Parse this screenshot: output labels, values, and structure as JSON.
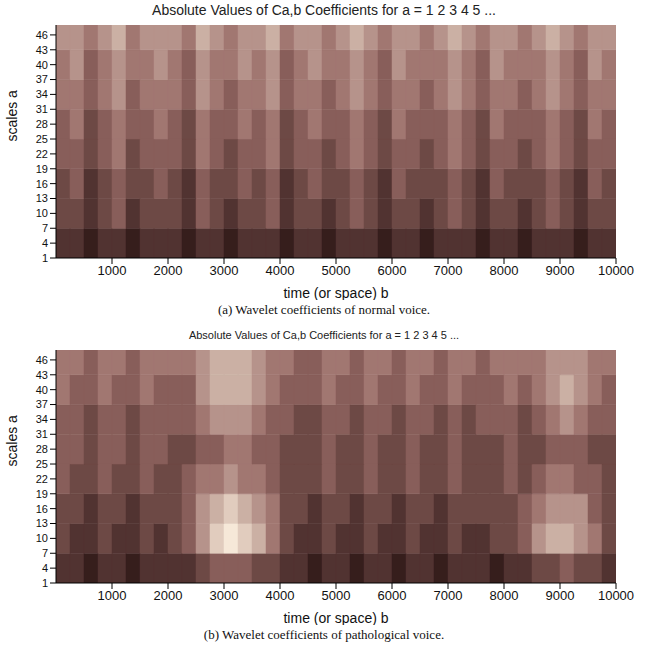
{
  "chart_data": [
    {
      "type": "heatmap",
      "title": "Absolute Values of Ca,b Coefficients for a =  1 2 3 4 5 ...",
      "xlabel": "time (or space) b",
      "ylabel": "scales a",
      "caption": "(a) Wavelet coefficients of normal voice.",
      "xlim": [
        0,
        10000
      ],
      "xticks": [
        1000,
        2000,
        3000,
        4000,
        5000,
        6000,
        7000,
        8000,
        9000,
        10000
      ],
      "ylim": [
        1,
        48
      ],
      "yticks": [
        1,
        4,
        7,
        10,
        13,
        16,
        19,
        22,
        25,
        28,
        31,
        34,
        37,
        40,
        43,
        46
      ],
      "x_edges": [
        0,
        250,
        500,
        750,
        1000,
        1250,
        1500,
        1750,
        2000,
        2250,
        2500,
        2750,
        3000,
        3250,
        3500,
        3750,
        4000,
        4250,
        4500,
        4750,
        5000,
        5250,
        5500,
        5750,
        6000,
        6250,
        6500,
        6750,
        7000,
        7250,
        7500,
        7750,
        8000,
        8250,
        8500,
        8750,
        9000,
        9250,
        9500,
        9750,
        10000
      ],
      "y_edges": [
        1,
        7,
        13,
        19,
        25,
        31,
        37,
        43,
        48
      ],
      "color_range": [
        0,
        9
      ],
      "cells": [
        [
          2,
          2,
          1,
          2,
          2,
          1,
          2,
          2,
          2,
          1,
          2,
          2,
          1,
          2,
          2,
          2,
          1,
          2,
          2,
          1,
          2,
          2,
          2,
          1,
          2,
          2,
          1,
          2,
          2,
          2,
          1,
          2,
          2,
          1,
          2,
          2,
          2,
          1,
          2,
          2
        ],
        [
          3,
          3,
          2,
          3,
          4,
          2,
          3,
          3,
          3,
          2,
          4,
          3,
          2,
          3,
          3,
          4,
          2,
          3,
          3,
          2,
          3,
          4,
          3,
          2,
          3,
          3,
          2,
          3,
          4,
          3,
          2,
          3,
          3,
          2,
          3,
          4,
          3,
          2,
          3,
          3
        ],
        [
          3,
          4,
          2,
          3,
          4,
          3,
          3,
          4,
          3,
          2,
          4,
          3,
          3,
          4,
          3,
          4,
          2,
          3,
          4,
          3,
          3,
          4,
          3,
          2,
          4,
          3,
          3,
          3,
          4,
          3,
          2,
          4,
          3,
          3,
          3,
          4,
          3,
          2,
          4,
          3
        ],
        [
          4,
          4,
          3,
          4,
          5,
          3,
          4,
          4,
          4,
          3,
          5,
          4,
          3,
          4,
          4,
          5,
          3,
          4,
          4,
          3,
          4,
          5,
          4,
          3,
          4,
          4,
          3,
          4,
          5,
          4,
          3,
          4,
          4,
          3,
          4,
          5,
          4,
          3,
          4,
          4
        ],
        [
          4,
          5,
          3,
          4,
          5,
          4,
          4,
          5,
          4,
          3,
          5,
          4,
          4,
          5,
          4,
          5,
          3,
          4,
          5,
          4,
          4,
          5,
          4,
          3,
          5,
          4,
          4,
          4,
          5,
          4,
          3,
          5,
          4,
          4,
          4,
          5,
          4,
          3,
          5,
          4
        ],
        [
          5,
          5,
          4,
          5,
          6,
          4,
          5,
          5,
          5,
          4,
          6,
          5,
          4,
          5,
          5,
          6,
          4,
          5,
          5,
          4,
          5,
          6,
          5,
          4,
          5,
          5,
          4,
          5,
          6,
          5,
          4,
          5,
          5,
          4,
          5,
          6,
          5,
          4,
          5,
          5
        ],
        [
          5,
          6,
          4,
          5,
          6,
          5,
          5,
          6,
          5,
          4,
          6,
          5,
          5,
          6,
          5,
          6,
          4,
          5,
          6,
          5,
          5,
          6,
          5,
          4,
          6,
          5,
          5,
          5,
          6,
          5,
          4,
          6,
          5,
          5,
          5,
          6,
          5,
          4,
          6,
          5
        ],
        [
          6,
          6,
          5,
          6,
          7,
          5,
          6,
          6,
          6,
          5,
          7,
          6,
          5,
          6,
          6,
          7,
          5,
          6,
          6,
          5,
          6,
          7,
          6,
          5,
          6,
          6,
          5,
          6,
          7,
          6,
          5,
          6,
          6,
          5,
          6,
          7,
          6,
          5,
          6,
          6
        ]
      ]
    },
    {
      "type": "heatmap",
      "title": "Absolute Values of Ca,b Coefficients for a =  1 2 3 4 5 ...",
      "xlabel": "time (or space) b",
      "ylabel": "scales a",
      "caption": "(b) Wavelet coefficients of pathological voice.",
      "xlim": [
        0,
        10000
      ],
      "xticks": [
        1000,
        2000,
        3000,
        4000,
        5000,
        6000,
        7000,
        8000,
        9000,
        10000
      ],
      "ylim": [
        1,
        48
      ],
      "yticks": [
        1,
        4,
        7,
        10,
        13,
        16,
        19,
        22,
        25,
        28,
        31,
        34,
        37,
        40,
        43,
        46
      ],
      "x_edges": [
        0,
        250,
        500,
        750,
        1000,
        1250,
        1500,
        1750,
        2000,
        2250,
        2500,
        2750,
        3000,
        3250,
        3500,
        3750,
        4000,
        4250,
        4500,
        4750,
        5000,
        5250,
        5500,
        5750,
        6000,
        6250,
        6500,
        6750,
        7000,
        7250,
        7500,
        7750,
        8000,
        8250,
        8500,
        8750,
        9000,
        9250,
        9500,
        9750,
        10000
      ],
      "y_edges": [
        1,
        7,
        13,
        19,
        25,
        31,
        37,
        43,
        48
      ],
      "color_range": [
        0,
        9
      ],
      "cells": [
        [
          2,
          2,
          1,
          2,
          2,
          1,
          2,
          2,
          2,
          2,
          3,
          4,
          4,
          4,
          3,
          3,
          2,
          2,
          1,
          2,
          2,
          1,
          2,
          2,
          1,
          2,
          2,
          1,
          2,
          2,
          2,
          1,
          2,
          2,
          3,
          3,
          4,
          3,
          3,
          2
        ],
        [
          3,
          2,
          2,
          3,
          2,
          2,
          3,
          2,
          3,
          4,
          6,
          8,
          9,
          8,
          7,
          5,
          3,
          2,
          2,
          3,
          2,
          2,
          3,
          2,
          2,
          3,
          2,
          2,
          3,
          2,
          2,
          3,
          3,
          4,
          6,
          7,
          7,
          6,
          5,
          3
        ],
        [
          3,
          3,
          2,
          3,
          3,
          2,
          3,
          3,
          3,
          4,
          6,
          7,
          8,
          7,
          6,
          5,
          3,
          3,
          2,
          3,
          3,
          2,
          3,
          3,
          2,
          3,
          3,
          2,
          3,
          3,
          3,
          3,
          3,
          4,
          5,
          6,
          6,
          6,
          4,
          3
        ],
        [
          4,
          3,
          3,
          4,
          3,
          3,
          4,
          3,
          3,
          4,
          5,
          5,
          6,
          5,
          5,
          4,
          3,
          3,
          3,
          4,
          3,
          3,
          4,
          3,
          3,
          4,
          3,
          3,
          4,
          3,
          3,
          3,
          4,
          3,
          4,
          5,
          5,
          4,
          4,
          3
        ],
        [
          4,
          4,
          3,
          4,
          4,
          3,
          4,
          4,
          3,
          3,
          4,
          4,
          5,
          5,
          4,
          4,
          3,
          3,
          3,
          4,
          3,
          3,
          4,
          3,
          3,
          4,
          3,
          3,
          4,
          3,
          3,
          3,
          4,
          3,
          3,
          4,
          4,
          4,
          3,
          3
        ],
        [
          4,
          4,
          3,
          4,
          4,
          3,
          4,
          4,
          4,
          4,
          5,
          6,
          6,
          6,
          5,
          4,
          4,
          3,
          3,
          4,
          4,
          3,
          4,
          4,
          3,
          4,
          4,
          3,
          4,
          3,
          4,
          4,
          4,
          3,
          4,
          5,
          6,
          5,
          4,
          4
        ],
        [
          5,
          4,
          4,
          5,
          4,
          4,
          5,
          4,
          4,
          4,
          6,
          7,
          7,
          7,
          6,
          5,
          4,
          4,
          4,
          5,
          4,
          4,
          5,
          4,
          4,
          5,
          4,
          4,
          5,
          4,
          4,
          4,
          5,
          4,
          5,
          6,
          7,
          6,
          5,
          4
        ],
        [
          5,
          5,
          4,
          5,
          5,
          4,
          5,
          5,
          5,
          5,
          6,
          7,
          7,
          7,
          6,
          5,
          5,
          4,
          4,
          5,
          5,
          4,
          5,
          5,
          4,
          5,
          5,
          4,
          5,
          5,
          4,
          5,
          5,
          5,
          5,
          6,
          6,
          6,
          5,
          5
        ]
      ]
    }
  ]
}
